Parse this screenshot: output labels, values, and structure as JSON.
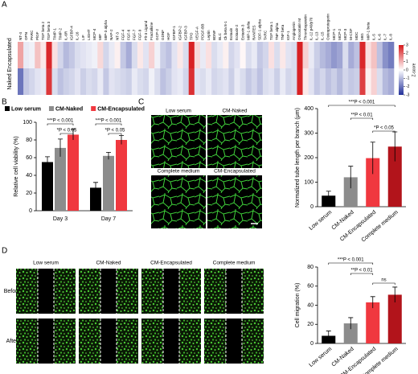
{
  "chart_data": [
    {
      "type": "heatmap",
      "panel": "A",
      "x": [
        "NT-4",
        "OPN",
        "PARC",
        "PlGF",
        "TGF beta 2",
        "TGF beta 3",
        "TIMP-1",
        "TIMP-2",
        "IL-6R",
        "IGFBP-4",
        "IL-16",
        "LIF",
        "LIGHT",
        "MCP-4",
        "MIF",
        "MIP-3 alpha",
        "NAP-2",
        "NT-3",
        "FGF-4",
        "FGF-6",
        "FGF-7",
        "FGF-9",
        "Flt-3 Ligand",
        "Fractalkine",
        "GCP-2",
        "GDNF",
        "HGF",
        "IGFBP-1",
        "IGFBP-2",
        "IGFBP-3",
        "TPO",
        "VEGF-A",
        "PDGF-BB",
        "Leptin",
        "BDNF",
        "BLC",
        "Ck beta 8-1",
        "Eotaxin",
        "Eotaxin-2",
        "Eotaxin-3",
        "MIP-1 delta",
        "RANTES",
        "SDF-1 alpha",
        "TARC",
        "TGF beta 1",
        "TNF alpha",
        "TNF beta",
        "IGF-1",
        "Angiogenin",
        "Oncostatin M",
        "Thrombopoietin",
        "IL-12 p40/p70",
        "IL-13",
        "IL-15",
        "Osteoprotegerin",
        "MCP-1",
        "MCP-2",
        "MCP-3",
        "M-CSF",
        "MDC",
        "MIG",
        "MIP-1 beta",
        "IL-5",
        "IL-6",
        "IL-7",
        "IL-8"
      ],
      "y": [
        "Encapsulated",
        "Naked"
      ],
      "values": [
        [
          1.2,
          -0.3,
          -0.2,
          0.8,
          0.3,
          2.8,
          0.4,
          -0.6,
          -1.0,
          -0.8,
          -0.5,
          -0.4,
          -0.3,
          -0.2,
          0.5,
          -0.6,
          -0.3,
          0.2,
          -0.8,
          -1.2,
          -0.5,
          0.3,
          -0.4,
          0.6,
          -0.2,
          -0.7,
          -0.9,
          -0.4,
          0.3,
          -0.5,
          2.9,
          0.5,
          -0.3,
          0.4,
          -0.5,
          -0.3,
          0.2,
          -0.6,
          -0.4,
          0.1,
          -0.5,
          -0.3,
          -0.8,
          -0.6,
          0.4,
          -0.5,
          0.3,
          -0.4,
          -0.5,
          2.9,
          0.6,
          -0.3,
          -0.7,
          -1.0,
          -1.2,
          -1.5,
          -1.3,
          -0.5,
          -1.2,
          -0.9,
          2.8,
          0.4,
          0.8,
          -0.9,
          -1.6,
          -1.9
        ],
        [
          -2.0,
          -0.8,
          -0.6,
          -0.4,
          -0.3,
          2.6,
          -0.5,
          -0.9,
          -0.7,
          -0.6,
          -0.4,
          -0.7,
          -0.5,
          -0.6,
          -0.3,
          -0.8,
          -0.4,
          -0.5,
          -0.6,
          -0.7,
          -0.3,
          -0.5,
          -0.6,
          -0.2,
          -0.5,
          -0.9,
          -0.7,
          -0.4,
          -0.3,
          -0.6,
          2.7,
          -0.4,
          -0.5,
          -0.3,
          -0.6,
          -0.5,
          -0.4,
          -0.7,
          -0.3,
          -0.5,
          -0.8,
          -0.6,
          -0.9,
          -0.5,
          -0.4,
          -0.7,
          -0.3,
          -0.6,
          -0.5,
          2.9,
          0.3,
          -0.4,
          -0.8,
          -0.6,
          -0.9,
          -0.7,
          -1.0,
          -0.6,
          -0.8,
          -0.7,
          2.5,
          0.2,
          0.6,
          -0.5,
          -1.0,
          -1.2
        ]
      ],
      "zlim": [
        -3,
        3
      ],
      "zticks": [
        -3,
        -2,
        -1,
        0,
        1,
        2,
        3
      ],
      "zlabel": "Z-score",
      "colors": [
        "#22309a",
        "#ffffff",
        "#d7191c"
      ]
    },
    {
      "type": "grouped-bar",
      "panel": "B",
      "ylabel": "Relative cell viability (%)",
      "categories": [
        "Day 3",
        "Day 7"
      ],
      "series": [
        {
          "name": "Low serum",
          "color": "#000000",
          "values": [
            55,
            26
          ],
          "errors": [
            6,
            6
          ]
        },
        {
          "name": "CM-Naked",
          "color": "#8c8c8c",
          "values": [
            71,
            62
          ],
          "errors": [
            10,
            4
          ]
        },
        {
          "name": "CM-Encapsulated",
          "color": "#f0383f",
          "values": [
            86,
            80
          ],
          "errors": [
            6,
            5
          ]
        }
      ],
      "ylim": [
        0,
        100
      ],
      "yticks": [
        0,
        20,
        40,
        60,
        80,
        100
      ],
      "annotations": [
        "***P < 0.001",
        "*P < 0.05",
        "***P < 0.001",
        "*P < 0.05"
      ]
    },
    {
      "type": "bar",
      "ylabel": "Normalized tube length per branch (μm)",
      "categories": [
        "Low serum",
        "CM-Naked",
        "CM-Encapsulated",
        "Complete medium"
      ],
      "colors": [
        "#000000",
        "#8c8c8c",
        "#f0383f",
        "#b2141b"
      ],
      "values": [
        45,
        120,
        198,
        245
      ],
      "errors": [
        18,
        45,
        65,
        60
      ],
      "ylim": [
        0,
        400
      ],
      "yticks": [
        0,
        100,
        200,
        300,
        400
      ],
      "annotations": [
        "***P < 0.001",
        "**P < 0.01",
        "*P < 0.05"
      ]
    },
    {
      "type": "bar",
      "ylabel": "Cell migration (%)",
      "categories": [
        "Low serum",
        "CM-Naked",
        "CM-Encapsulated",
        "Complete medium"
      ],
      "colors": [
        "#000000",
        "#8c8c8c",
        "#f0383f",
        "#b2141b"
      ],
      "values": [
        8,
        21,
        43,
        51
      ],
      "errors": [
        5,
        6,
        6,
        8
      ],
      "ylim": [
        0,
        80
      ],
      "yticks": [
        0,
        20,
        40,
        60,
        80
      ],
      "annotations": [
        "***P < 0.001",
        "**P < 0.01",
        "ns"
      ]
    }
  ],
  "images": [
    {
      "panel": "C",
      "labels": [
        "Low serum",
        "CM-Naked",
        "Complete medium",
        "CM-Encapsulated"
      ]
    },
    {
      "panel": "D",
      "columns": [
        "Low serum",
        "CM-Naked",
        "CM-Encapsulated",
        "Complete medium"
      ],
      "rows": [
        "Before",
        "After"
      ]
    }
  ]
}
